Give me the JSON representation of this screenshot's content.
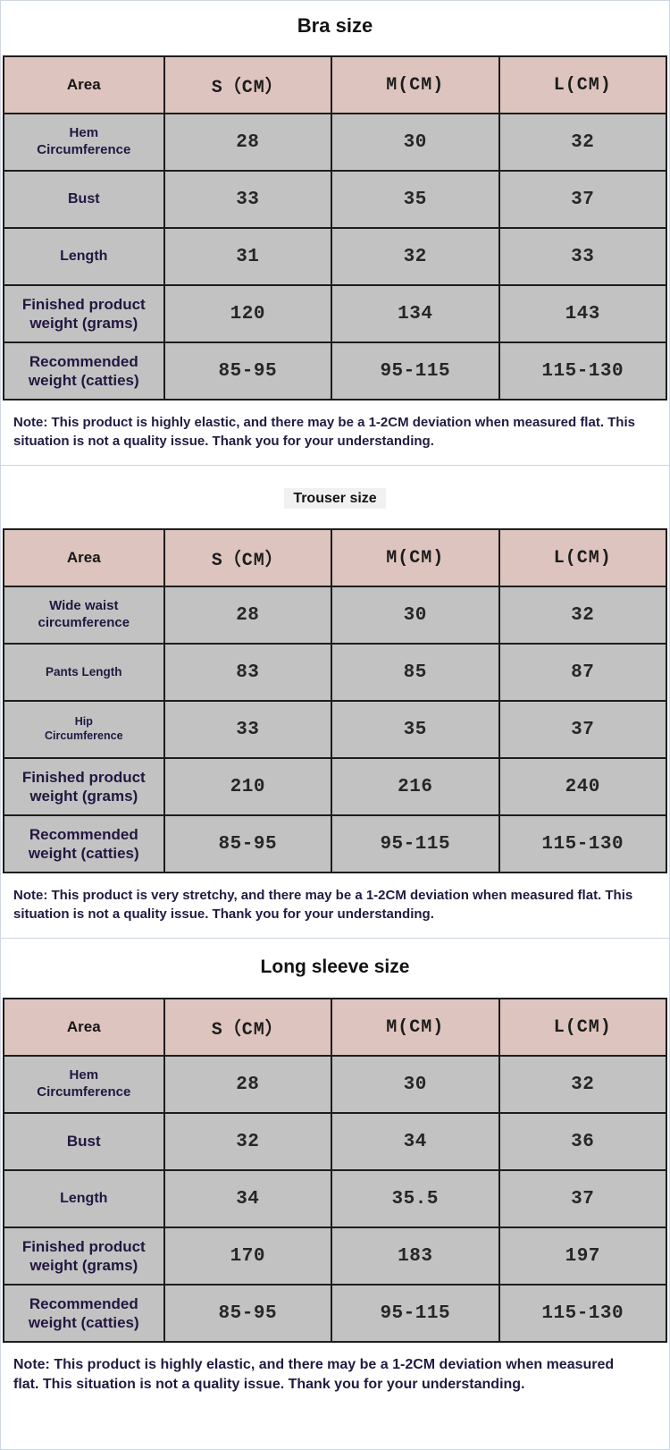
{
  "colors": {
    "header_bg": "#ddc4be",
    "row_bg": "#c2c2c2",
    "table_border": "#1d1d1d",
    "label_text": "#221740",
    "value_text": "#262626",
    "note_text": "#211b41",
    "divider": "#cfd6e3"
  },
  "sections": [
    {
      "title": "Bra size",
      "columns": [
        "Area",
        "S（CM）",
        "M(CM)",
        "L(CM)"
      ],
      "rows": [
        {
          "label": "Hem Circumference",
          "values": [
            "28",
            "30",
            "32"
          ]
        },
        {
          "label": "Bust",
          "values": [
            "33",
            "35",
            "37"
          ]
        },
        {
          "label": "Length",
          "values": [
            "31",
            "32",
            "33"
          ]
        },
        {
          "label": "Finished product weight (grams)",
          "values": [
            "120",
            "134",
            "143"
          ]
        },
        {
          "label": "Recommended weight (catties)",
          "values": [
            "85-95",
            "95-115",
            "115-130"
          ]
        }
      ],
      "note": "Note: This product is highly elastic, and there may be a 1-2CM deviation when measured flat. This situation is not a quality issue. Thank you for your understanding."
    },
    {
      "title": "Trouser size",
      "columns": [
        "Area",
        "S（CM）",
        "M(CM)",
        "L(CM)"
      ],
      "rows": [
        {
          "label": "Wide waist circumference",
          "values": [
            "28",
            "30",
            "32"
          ]
        },
        {
          "label": "Pants Length",
          "values": [
            "83",
            "85",
            "87"
          ]
        },
        {
          "label": "Hip Circumference",
          "values": [
            "33",
            "35",
            "37"
          ]
        },
        {
          "label": "Finished product weight (grams)",
          "values": [
            "210",
            "216",
            "240"
          ]
        },
        {
          "label": "Recommended weight (catties)",
          "values": [
            "85-95",
            "95-115",
            "115-130"
          ]
        }
      ],
      "note": "Note: This product is very stretchy, and there may be a 1-2CM deviation when measured flat. This situation is not a quality issue. Thank you for your understanding."
    },
    {
      "title": "Long sleeve size",
      "columns": [
        "Area",
        "S（CM）",
        "M(CM)",
        "L(CM)"
      ],
      "rows": [
        {
          "label": "Hem Circumference",
          "values": [
            "28",
            "30",
            "32"
          ]
        },
        {
          "label": "Bust",
          "values": [
            "32",
            "34",
            "36"
          ]
        },
        {
          "label": "Length",
          "values": [
            "34",
            "35.5",
            "37"
          ]
        },
        {
          "label": "Finished product weight (grams)",
          "values": [
            "170",
            "183",
            "197"
          ]
        },
        {
          "label": "Recommended weight (catties)",
          "values": [
            "85-95",
            "95-115",
            "115-130"
          ]
        }
      ],
      "note": "Note: This product is highly elastic, and there may be a 1-2CM deviation when measured flat. This situation is not a quality issue. Thank you for your understanding."
    }
  ]
}
